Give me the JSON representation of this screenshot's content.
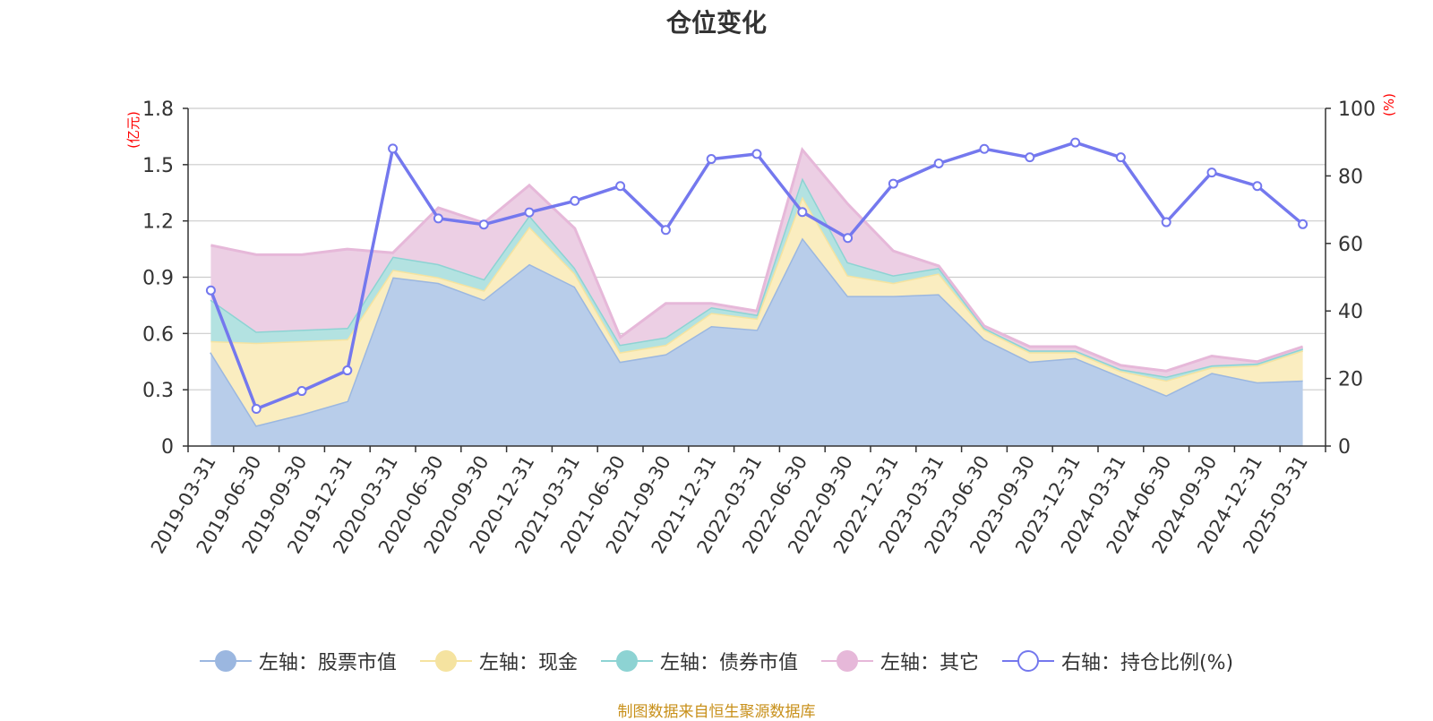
{
  "title": "仓位变化",
  "source_note": "制图数据来自恒生聚源数据库",
  "chart_data": {
    "type": "area",
    "stacked": true,
    "title": "仓位变化",
    "left_axis": {
      "unit": "(亿元)",
      "ylim": [
        0,
        1.8
      ],
      "ticks": [
        0,
        0.3,
        0.6,
        0.9,
        1.2,
        1.5,
        1.8
      ],
      "tick_labels": [
        "0",
        "0.3",
        "0.6",
        "0.9",
        "1.2",
        "1.5",
        "1.8"
      ]
    },
    "right_axis": {
      "unit": "(%)",
      "ylim": [
        0,
        100
      ],
      "ticks": [
        0,
        20,
        40,
        60,
        80,
        100
      ],
      "tick_labels": [
        "0",
        "20",
        "40",
        "60",
        "80",
        "100"
      ]
    },
    "grid": true,
    "legend_position": "bottom",
    "categories": [
      "2019-03-31",
      "2019-06-30",
      "2019-09-30",
      "2019-12-31",
      "2020-03-31",
      "2020-06-30",
      "2020-09-30",
      "2020-12-31",
      "2021-03-31",
      "2021-06-30",
      "2021-09-30",
      "2021-12-31",
      "2022-03-31",
      "2022-06-30",
      "2022-09-30",
      "2022-12-31",
      "2023-03-31",
      "2023-06-30",
      "2023-09-30",
      "2023-12-31",
      "2024-03-31",
      "2024-06-30",
      "2024-09-30",
      "2024-12-31",
      "2025-03-31"
    ],
    "series": [
      {
        "name": "左轴：股票市值",
        "axis": "left",
        "kind": "area",
        "color": "#9bb7e0",
        "fill": "#b8cdea",
        "values": [
          0.5,
          0.11,
          0.17,
          0.24,
          0.9,
          0.87,
          0.78,
          0.97,
          0.85,
          0.45,
          0.49,
          0.64,
          0.62,
          1.11,
          0.8,
          0.8,
          0.81,
          0.57,
          0.45,
          0.47,
          0.37,
          0.27,
          0.39,
          0.34,
          0.35
        ]
      },
      {
        "name": "左轴：现金",
        "axis": "left",
        "kind": "area",
        "color": "#f5e3a0",
        "fill": "#faedc0",
        "values": [
          0.06,
          0.44,
          0.39,
          0.33,
          0.04,
          0.03,
          0.05,
          0.2,
          0.07,
          0.05,
          0.05,
          0.07,
          0.06,
          0.22,
          0.11,
          0.07,
          0.11,
          0.05,
          0.05,
          0.03,
          0.03,
          0.08,
          0.03,
          0.09,
          0.16
        ]
      },
      {
        "name": "左轴：债券市值",
        "axis": "left",
        "kind": "area",
        "color": "#8dd3d3",
        "fill": "#b3e2e1",
        "values": [
          0.22,
          0.06,
          0.06,
          0.06,
          0.07,
          0.07,
          0.06,
          0.06,
          0.03,
          0.04,
          0.04,
          0.03,
          0.02,
          0.1,
          0.07,
          0.04,
          0.03,
          0.01,
          0.01,
          0.01,
          0.01,
          0.02,
          0.01,
          0.01,
          0.01
        ]
      },
      {
        "name": "左轴：其它",
        "axis": "left",
        "kind": "area",
        "color": "#e6b8d9",
        "fill": "#eccfe4",
        "values": [
          0.29,
          0.41,
          0.4,
          0.42,
          0.02,
          0.3,
          0.3,
          0.16,
          0.21,
          0.04,
          0.18,
          0.02,
          0.02,
          0.15,
          0.31,
          0.13,
          0.01,
          0.01,
          0.02,
          0.02,
          0.02,
          0.03,
          0.05,
          0.01,
          0.01
        ]
      },
      {
        "name": "右轴：持仓比例(%)",
        "axis": "right",
        "kind": "line",
        "color": "#7478ee",
        "values": [
          46.1,
          11.0,
          16.3,
          22.4,
          88.1,
          67.4,
          65.6,
          69.2,
          72.6,
          77.0,
          64.0,
          85.0,
          86.5,
          69.3,
          61.6,
          77.7,
          83.7,
          88.0,
          85.5,
          89.9,
          85.5,
          66.3,
          81.0,
          77.0,
          65.7
        ]
      }
    ]
  }
}
